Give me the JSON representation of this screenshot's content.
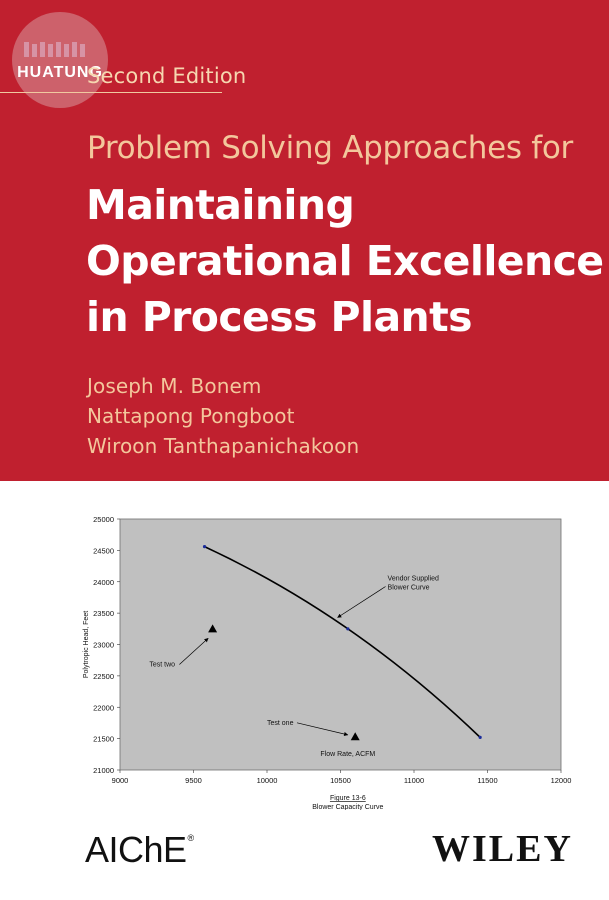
{
  "watermark": {
    "text": "HUATUNG"
  },
  "edition": "Second Edition",
  "subtitle": "Problem Solving Approaches for",
  "title_lines": [
    "Maintaining",
    "Operational Excellence",
    "in Process Plants"
  ],
  "authors": [
    "Joseph M. Bonem",
    "Nattapong Pongboot",
    "Wiroon Tanthapanichakoon"
  ],
  "publishers": {
    "left": "AIChE",
    "left_mark": "®",
    "right": "WILEY"
  },
  "colors": {
    "band": "#c0202f",
    "accent_text": "#f3c79c",
    "plot_bg": "#c0c0c0"
  },
  "chart_data": {
    "type": "scatter",
    "title": "",
    "xlabel": "Flow Rate, ACFM",
    "ylabel": "Polytropic Head, Feet",
    "xlim": [
      9000,
      12000
    ],
    "ylim": [
      21000,
      25000
    ],
    "x_ticks": [
      9000,
      9500,
      10000,
      10500,
      11000,
      11500,
      12000
    ],
    "y_ticks": [
      21000,
      21500,
      22000,
      22500,
      23000,
      23500,
      24000,
      24500,
      25000
    ],
    "grid": false,
    "series": [
      {
        "name": "Vendor Supplied Blower Curve",
        "kind": "line",
        "points": [
          [
            9575,
            24560
          ],
          [
            10550,
            23250
          ],
          [
            11450,
            21520
          ]
        ]
      },
      {
        "name": "",
        "kind": "markers",
        "points": [
          [
            9630,
            23250
          ],
          [
            10600,
            21530
          ]
        ]
      }
    ],
    "annotations": [
      {
        "lines": [
          "Vendor Supplied",
          "Blower Curve"
        ],
        "anchor": [
          10820,
          24020
        ],
        "arrow_to": [
          10480,
          23430
        ]
      },
      {
        "lines": [
          "Test two"
        ],
        "anchor": [
          9200,
          22650
        ],
        "arrow_to": [
          9600,
          23100
        ]
      },
      {
        "lines": [
          "Test one"
        ],
        "anchor": [
          10000,
          21720
        ],
        "arrow_to": [
          10550,
          21560
        ]
      }
    ],
    "caption": [
      "Figure 13-6",
      "Blower Capacity Curve"
    ]
  }
}
